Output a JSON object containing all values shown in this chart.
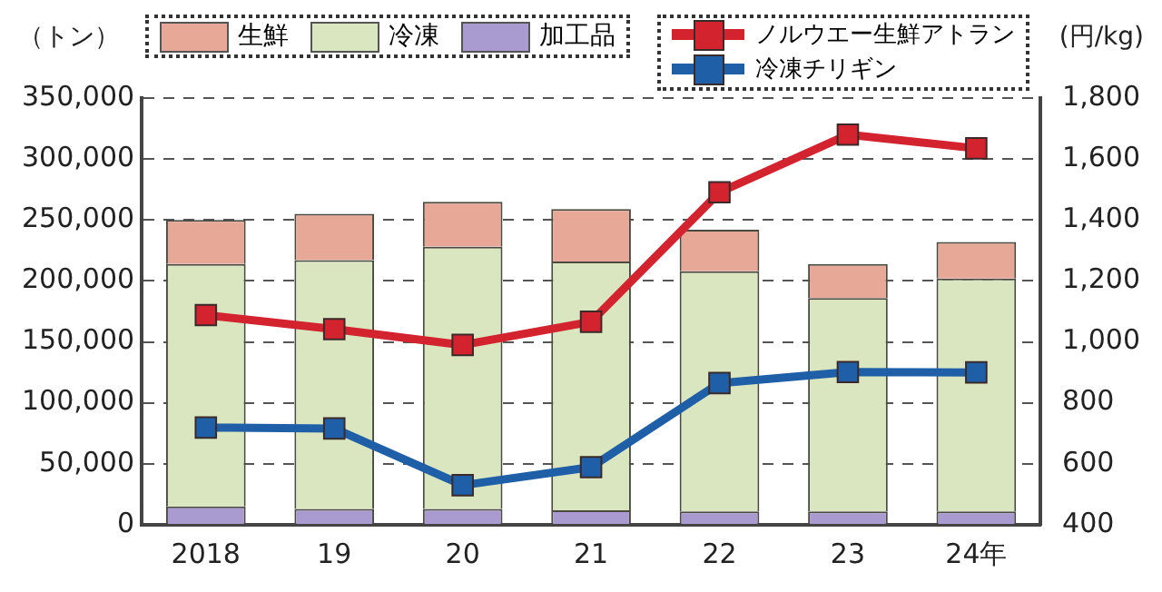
{
  "chart_data": {
    "type": "bar",
    "stacked": true,
    "categories": [
      "2018",
      "19",
      "20",
      "21",
      "22",
      "23",
      "24年"
    ],
    "ylabel": "（トン）",
    "y2label": "(円/kg)",
    "series": [
      {
        "name": "加工品",
        "color": "#a99bcf",
        "values": [
          15000,
          13000,
          13000,
          12000,
          11000,
          11000,
          11000
        ]
      },
      {
        "name": "冷凍",
        "color": "#d9e6bf",
        "values": [
          199000,
          204000,
          215000,
          204000,
          197000,
          175000,
          191000
        ]
      },
      {
        "name": "生鮮",
        "color": "#e8a898",
        "values": [
          36000,
          38000,
          37000,
          43000,
          34000,
          28000,
          30000
        ]
      },
      {
        "name": "ノルウエー生鮮アトラン",
        "type": "line",
        "axis": "y2",
        "color": "#d2232e",
        "values": [
          1088,
          1042,
          990,
          1066,
          1491,
          1680,
          1635
        ]
      },
      {
        "name": "冷凍チリギン",
        "type": "line",
        "axis": "y2",
        "color": "#1f5fa8",
        "values": [
          719,
          716,
          530,
          589,
          865,
          901,
          900
        ]
      }
    ],
    "ylim": [
      0,
      350000
    ],
    "yticks": [
      0,
      {
        "value": 50000,
        "label": "50,000"
      },
      {
        "value": 100000,
        "label": "100,000"
      },
      {
        "value": 150000,
        "label": "150,000"
      },
      {
        "value": 200000,
        "label": "200,000"
      },
      {
        "value": 250000,
        "label": "250,000"
      },
      {
        "value": 300000,
        "label": "300,000"
      },
      {
        "value": 350000,
        "label": "350,000"
      }
    ],
    "y2lim": [
      400,
      1800
    ],
    "y2ticks": [
      400,
      600,
      800,
      {
        "value": 1000,
        "label": "1,000"
      },
      {
        "value": 1200,
        "label": "1,200"
      },
      {
        "value": 1400,
        "label": "1,400"
      },
      {
        "value": 1600,
        "label": "1,600"
      },
      {
        "value": 1800,
        "label": "1,800"
      }
    ],
    "grid": "y",
    "legend": "top",
    "marker": "square",
    "line_style": "solid"
  }
}
